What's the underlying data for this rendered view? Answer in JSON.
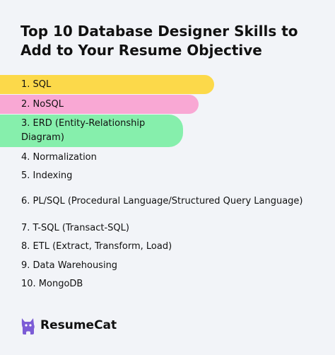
{
  "title": "Top 10 Database Designer Skills to Add to Your Resume Objective",
  "skills": [
    {
      "label": "1. SQL",
      "highlight": "#fcd94a"
    },
    {
      "label": "2. NoSQL",
      "highlight": "#f9a8d4"
    },
    {
      "label": "3. ERD (Entity-Relationship Diagram)",
      "highlight": "#86efac"
    },
    {
      "label": "4. Normalization",
      "highlight": ""
    },
    {
      "label": "5. Indexing",
      "highlight": ""
    },
    {
      "label": "6. PL/SQL (Procedural Language/Structured Query Language)",
      "highlight": ""
    },
    {
      "label": "7. T-SQL (Transact-SQL)",
      "highlight": ""
    },
    {
      "label": "8. ETL (Extract, Transform, Load)",
      "highlight": ""
    },
    {
      "label": "9. Data Warehousing",
      "highlight": ""
    },
    {
      "label": "10. MongoDB",
      "highlight": ""
    }
  ],
  "brand": {
    "name": "ResumeCat",
    "icon": "cat-logo-icon",
    "color": "#7c5cd6"
  }
}
